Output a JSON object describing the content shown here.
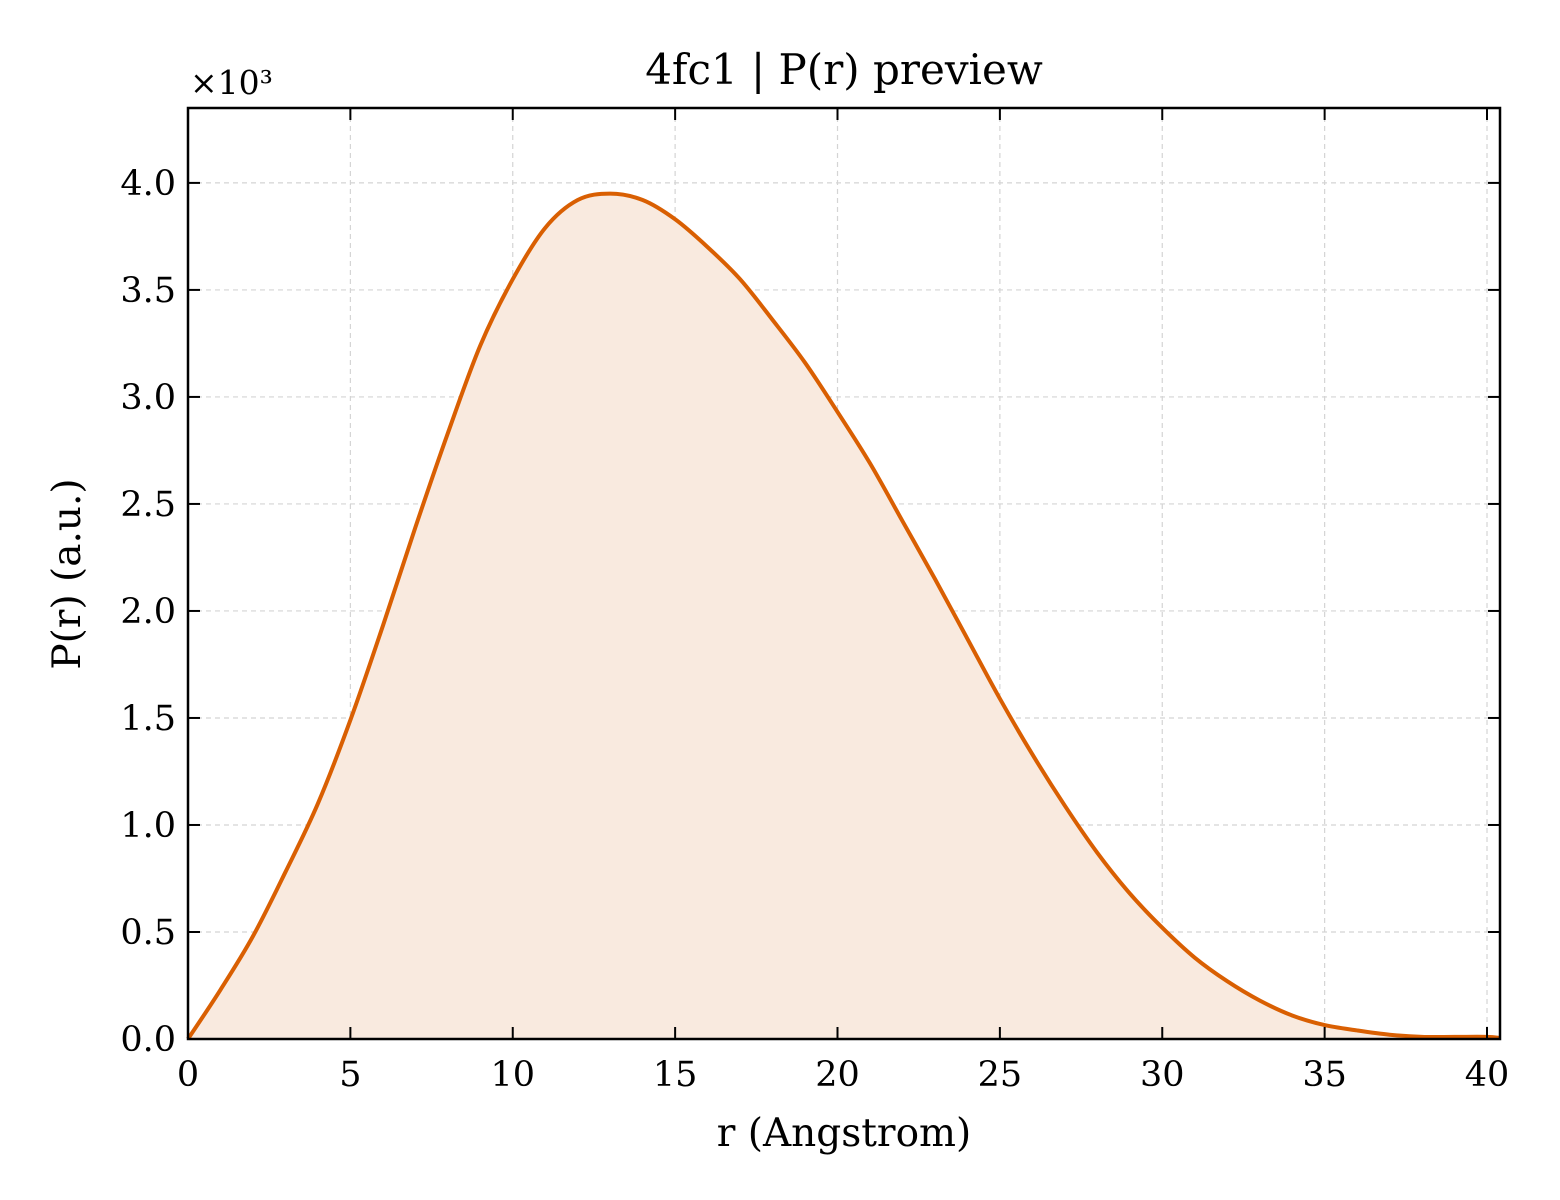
{
  "chart_data": {
    "type": "area",
    "title": "4fc1 | P(r) preview",
    "xlabel": "r (Angstrom)",
    "ylabel": "P(r) (a.u.)",
    "y_multiplier": "×10³",
    "xlim": [
      0,
      40.4
    ],
    "ylim": [
      0,
      4.35
    ],
    "xticks": [
      0,
      5,
      10,
      15,
      20,
      25,
      30,
      35,
      40
    ],
    "yticks": [
      0.0,
      0.5,
      1.0,
      1.5,
      2.0,
      2.5,
      3.0,
      3.5,
      4.0
    ],
    "grid": true,
    "line_color": "#d95f02",
    "fill_color": "#f9eadf",
    "series": [
      {
        "x": [
          0,
          1,
          2,
          3,
          4,
          5,
          6,
          7,
          8,
          9,
          10,
          11,
          12,
          13,
          14,
          15,
          16,
          17,
          18,
          19,
          20,
          21,
          22,
          23,
          24,
          25,
          26,
          27,
          28,
          29,
          30,
          31,
          32,
          33,
          34,
          35,
          36,
          37,
          38,
          39,
          40,
          40.4
        ],
        "y": [
          0.0,
          0.23,
          0.48,
          0.78,
          1.1,
          1.49,
          1.93,
          2.39,
          2.83,
          3.24,
          3.55,
          3.79,
          3.92,
          3.95,
          3.92,
          3.83,
          3.7,
          3.55,
          3.36,
          3.16,
          2.93,
          2.69,
          2.42,
          2.15,
          1.87,
          1.59,
          1.33,
          1.09,
          0.87,
          0.68,
          0.52,
          0.38,
          0.27,
          0.18,
          0.11,
          0.065,
          0.04,
          0.02,
          0.01,
          0.01,
          0.01,
          0.005
        ]
      }
    ]
  }
}
